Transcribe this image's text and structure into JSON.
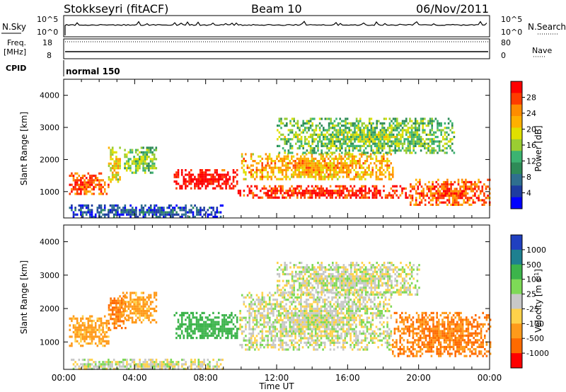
{
  "header": {
    "station": "Stokkseyri (fitACF)",
    "beam": "Beam 10",
    "date": "06/Nov/2011"
  },
  "strip_panels": {
    "nsky_label": "N.Sky",
    "nsearch_label": "N.Search",
    "nsky_ticks": [
      "10^5",
      "10^0"
    ],
    "nsearch_ticks": [
      "10^5",
      "10^0"
    ],
    "freq_label_line1": "Freq.",
    "freq_label_line2": "[MHz]",
    "freq_ticks": [
      "18",
      "8"
    ],
    "nave_label": "Nave",
    "nave_ticks": [
      "80",
      "0"
    ],
    "cpid_label": "CPID",
    "cpid_value": "normal 150"
  },
  "colorbars": {
    "power": {
      "label": "Power [dB]",
      "ticks": [
        "28",
        "24",
        "20",
        "16",
        "12",
        "8",
        "4"
      ],
      "colors": [
        "#ff0000",
        "#ff3c00",
        "#ff8c00",
        "#ffb000",
        "#e0e000",
        "#9acd32",
        "#3cb371",
        "#2e8b57",
        "#2f6f8f",
        "#1e3ca0",
        "#0000ff"
      ]
    },
    "velocity": {
      "label": "Velocity [m s",
      "label_sup": "-1",
      "label_end": "]",
      "ticks": [
        "1000",
        "500",
        "100",
        "25",
        "-25",
        "-100",
        "-500",
        "-1000"
      ],
      "colors": [
        "#2040c0",
        "#1e8090",
        "#3cb44b",
        "#7ed957",
        "#c8c8c8",
        "#ffd24a",
        "#ff9a1a",
        "#ff6a00",
        "#ff0000"
      ]
    }
  },
  "chart_data": [
    {
      "type": "heatmap",
      "title": "Power",
      "xlabel": "Time UT",
      "ylabel": "Slant Range [km]",
      "x_ticks": [
        "00:00",
        "04:00",
        "08:00",
        "12:00",
        "16:00",
        "20:00",
        "00:00"
      ],
      "y_ticks": [
        1000,
        2000,
        3000,
        4000
      ],
      "xlim_hours": [
        0,
        24
      ],
      "ylim_km": [
        180,
        4500
      ],
      "colorbar": "power",
      "echo_regions": [
        {
          "t0": 0.3,
          "t1": 2.5,
          "r0": 900,
          "r1": 1600,
          "level": 24
        },
        {
          "t0": 2.5,
          "t1": 3.2,
          "r0": 1300,
          "r1": 2400,
          "level": 18
        },
        {
          "t0": 3.4,
          "t1": 5.2,
          "r0": 1600,
          "r1": 2400,
          "level": 14
        },
        {
          "t0": 6.2,
          "t1": 9.8,
          "r0": 1100,
          "r1": 1700,
          "level": 28
        },
        {
          "t0": 9.8,
          "t1": 19.5,
          "r0": 800,
          "r1": 1200,
          "level": 26
        },
        {
          "t0": 10.0,
          "t1": 18.5,
          "r0": 1400,
          "r1": 2200,
          "level": 20
        },
        {
          "t0": 19.5,
          "t1": 24.0,
          "r0": 600,
          "r1": 1400,
          "level": 24
        },
        {
          "t0": 12.0,
          "t1": 22.0,
          "r0": 2200,
          "r1": 3300,
          "level": 14
        },
        {
          "t0": 0.3,
          "t1": 9.0,
          "r0": 180,
          "r1": 600,
          "level": 6
        }
      ]
    },
    {
      "type": "heatmap",
      "title": "Velocity",
      "xlabel": "Time UT",
      "ylabel": "Slant Range [km]",
      "x_ticks": [
        "00:00",
        "04:00",
        "08:00",
        "12:00",
        "16:00",
        "20:00",
        "00:00"
      ],
      "y_ticks": [
        1000,
        2000,
        3000,
        4000
      ],
      "xlim_hours": [
        0,
        24
      ],
      "ylim_km": [
        180,
        4500
      ],
      "colorbar": "velocity",
      "echo_regions": [
        {
          "t0": 0.3,
          "t1": 2.6,
          "r0": 900,
          "r1": 1800,
          "vel": -100
        },
        {
          "t0": 2.5,
          "t1": 3.5,
          "r0": 1400,
          "r1": 2400,
          "vel": -300
        },
        {
          "t0": 3.3,
          "t1": 5.2,
          "r0": 1600,
          "r1": 2500,
          "vel": -100
        },
        {
          "t0": 6.2,
          "t1": 9.9,
          "r0": 1100,
          "r1": 1900,
          "vel": 150
        },
        {
          "t0": 9.9,
          "t1": 18.5,
          "r0": 800,
          "r1": 2500,
          "vel": 0
        },
        {
          "t0": 18.5,
          "t1": 24.0,
          "r0": 600,
          "r1": 1900,
          "vel": -300
        },
        {
          "t0": 12.0,
          "t1": 20.0,
          "r0": 2400,
          "r1": 3400,
          "vel": 0
        },
        {
          "t0": 0.3,
          "t1": 9.0,
          "r0": 180,
          "r1": 500,
          "vel": 0
        }
      ]
    }
  ]
}
